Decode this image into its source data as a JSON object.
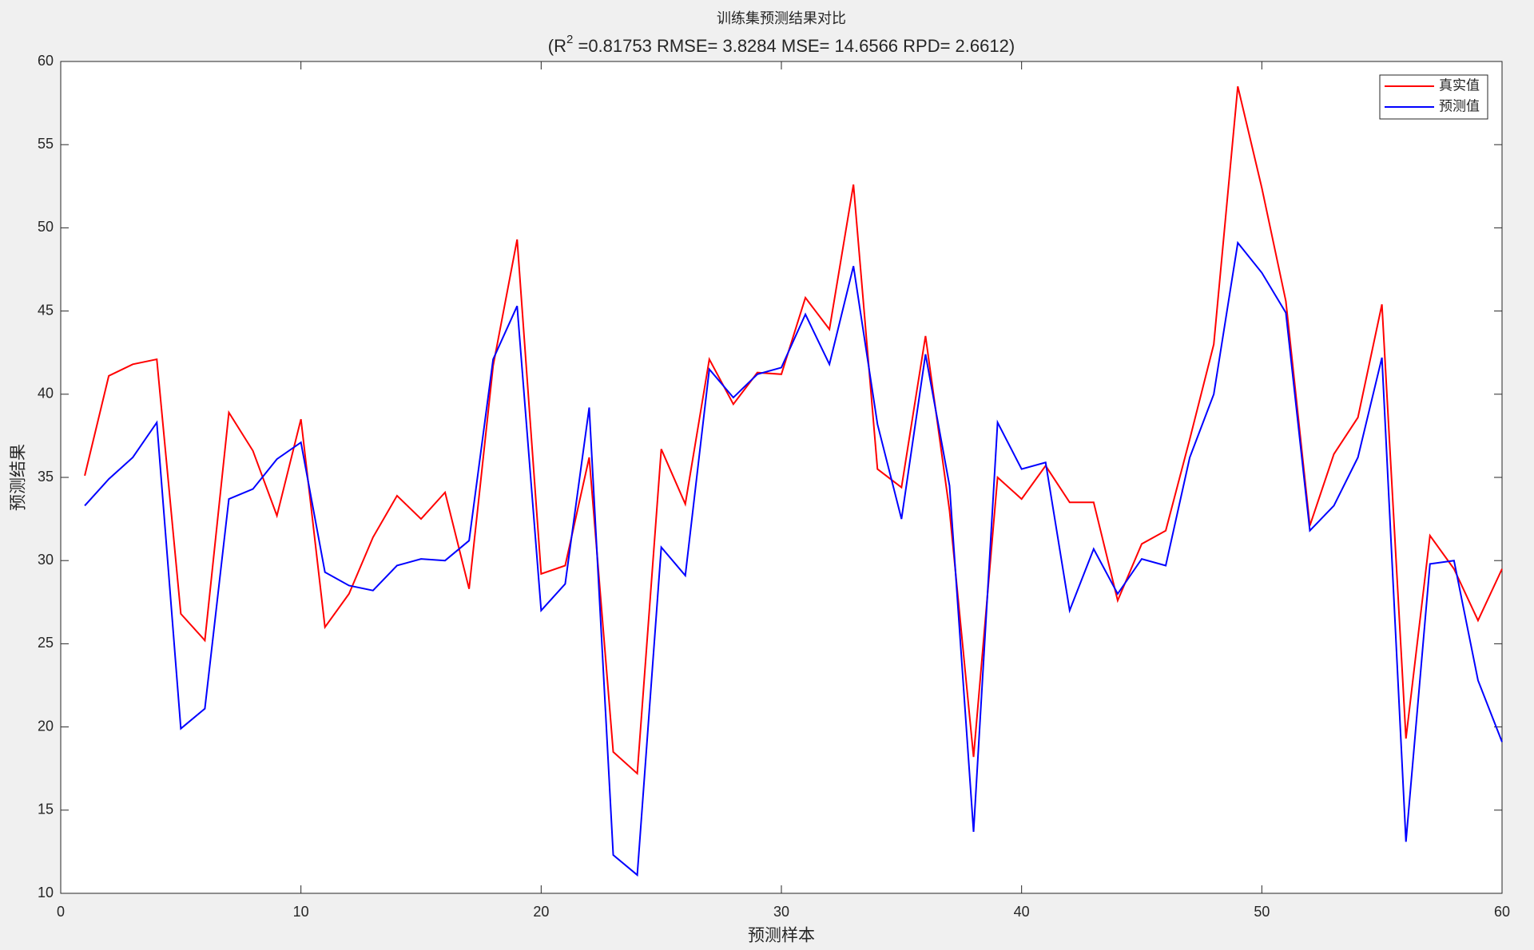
{
  "chart_data": {
    "type": "line",
    "title": "训练集预测结果对比",
    "subtitle": [
      "(R",
      "2",
      " =0.81753 RMSE= 3.8284 MSE= 14.6566 RPD= 2.6612)"
    ],
    "xlabel": "预测样本",
    "ylabel": "预测结果",
    "x": [
      1,
      2,
      3,
      4,
      5,
      6,
      7,
      8,
      9,
      10,
      11,
      12,
      13,
      14,
      15,
      16,
      17,
      18,
      19,
      20,
      21,
      22,
      23,
      24,
      25,
      26,
      27,
      28,
      29,
      30,
      31,
      32,
      33,
      34,
      35,
      36,
      37,
      38,
      39,
      40,
      41,
      42,
      43,
      44,
      45,
      46,
      47,
      48,
      49,
      50,
      51,
      52,
      53,
      54,
      55,
      56,
      57,
      58,
      59,
      60
    ],
    "series": [
      {
        "name": "真实值",
        "color": "#ff0000",
        "values": [
          35.1,
          41.1,
          41.8,
          42.1,
          26.8,
          25.2,
          38.9,
          36.6,
          32.7,
          38.5,
          26.0,
          28.0,
          31.4,
          33.9,
          32.5,
          34.1,
          28.3,
          41.7,
          49.3,
          29.2,
          29.7,
          36.2,
          18.5,
          17.2,
          36.7,
          33.4,
          42.1,
          39.4,
          41.3,
          41.2,
          45.8,
          43.9,
          52.6,
          35.5,
          34.4,
          43.5,
          33.0,
          18.2,
          35.0,
          33.7,
          35.7,
          33.5,
          33.5,
          27.6,
          31.0,
          31.8,
          37.3,
          43.0,
          58.5,
          52.4,
          45.6,
          32.1,
          36.4,
          38.6,
          45.4,
          19.3,
          31.5,
          29.5,
          26.4,
          29.5
        ]
      },
      {
        "name": "预测值",
        "color": "#0000ff",
        "values": [
          33.3,
          34.9,
          36.2,
          38.3,
          19.9,
          21.1,
          33.7,
          34.3,
          36.1,
          37.1,
          29.3,
          28.5,
          28.2,
          29.7,
          30.1,
          30.0,
          31.2,
          42.1,
          45.3,
          27.0,
          28.6,
          39.2,
          12.3,
          11.1,
          30.8,
          29.1,
          41.5,
          39.8,
          41.2,
          41.6,
          44.8,
          41.8,
          47.7,
          38.2,
          32.5,
          42.4,
          34.5,
          13.7,
          38.3,
          35.5,
          35.9,
          27.0,
          30.7,
          28.0,
          30.1,
          29.7,
          36.2,
          40.0,
          49.1,
          47.3,
          44.9,
          31.8,
          33.3,
          36.2,
          42.2,
          13.1,
          29.8,
          30.0,
          22.8,
          19.1
        ]
      }
    ],
    "xlim": [
      0,
      60
    ],
    "ylim": [
      10,
      60
    ],
    "xticks": [
      0,
      10,
      20,
      30,
      40,
      50,
      60
    ],
    "yticks": [
      10,
      15,
      20,
      25,
      30,
      35,
      40,
      45,
      50,
      55,
      60
    ],
    "grid": false,
    "legend": "northeast"
  }
}
